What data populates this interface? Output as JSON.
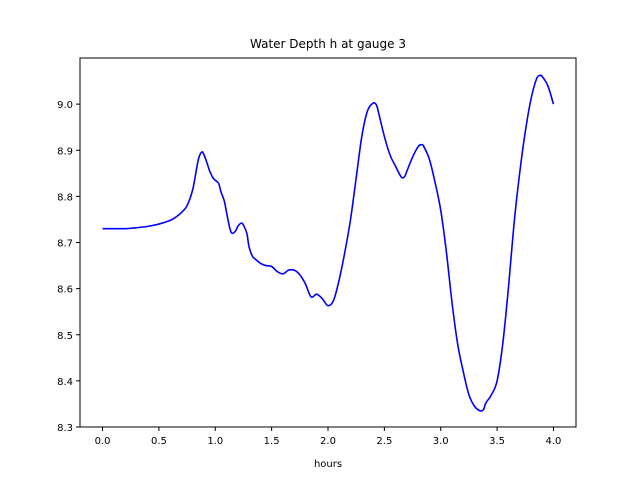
{
  "chart_data": {
    "type": "line",
    "title": "Water Depth h at gauge 3",
    "xlabel": "hours",
    "ylabel": "",
    "xlim": [
      -0.2,
      4.2
    ],
    "ylim": [
      8.3,
      9.1
    ],
    "grid": false,
    "xticks": [
      0.0,
      0.5,
      1.0,
      1.5,
      2.0,
      2.5,
      3.0,
      3.5,
      4.0
    ],
    "xtick_labels": [
      "0.0",
      "0.5",
      "1.0",
      "1.5",
      "2.0",
      "2.5",
      "3.0",
      "3.5",
      "4.0"
    ],
    "yticks": [
      8.3,
      8.4,
      8.5,
      8.6,
      8.7,
      8.8,
      8.9,
      9.0
    ],
    "ytick_labels": [
      "8.3",
      "8.4",
      "8.5",
      "8.6",
      "8.7",
      "8.8",
      "8.9",
      "9.0"
    ],
    "series": [
      {
        "color": "#0000ff",
        "x": [
          0.0,
          0.1,
          0.2,
          0.3,
          0.4,
          0.5,
          0.6,
          0.65,
          0.7,
          0.75,
          0.8,
          0.85,
          0.88,
          0.9,
          0.93,
          0.95,
          0.98,
          1.0,
          1.03,
          1.05,
          1.08,
          1.1,
          1.13,
          1.15,
          1.18,
          1.2,
          1.23,
          1.25,
          1.28,
          1.3,
          1.33,
          1.35,
          1.4,
          1.45,
          1.5,
          1.55,
          1.6,
          1.65,
          1.7,
          1.75,
          1.8,
          1.85,
          1.9,
          1.95,
          2.0,
          2.05,
          2.1,
          2.15,
          2.2,
          2.25,
          2.3,
          2.35,
          2.4,
          2.43,
          2.45,
          2.5,
          2.55,
          2.6,
          2.65,
          2.68,
          2.7,
          2.75,
          2.8,
          2.83,
          2.85,
          2.9,
          2.95,
          3.0,
          3.05,
          3.1,
          3.15,
          3.2,
          3.25,
          3.3,
          3.35,
          3.38,
          3.4,
          3.45,
          3.5,
          3.55,
          3.6,
          3.65,
          3.7,
          3.75,
          3.8,
          3.85,
          3.88,
          3.9,
          3.95,
          4.0
        ],
        "y": [
          8.73,
          8.73,
          8.73,
          8.732,
          8.735,
          8.74,
          8.748,
          8.755,
          8.765,
          8.78,
          8.815,
          8.88,
          8.896,
          8.89,
          8.87,
          8.855,
          8.84,
          8.835,
          8.828,
          8.81,
          8.79,
          8.765,
          8.73,
          8.72,
          8.725,
          8.735,
          8.742,
          8.738,
          8.72,
          8.69,
          8.67,
          8.665,
          8.655,
          8.65,
          8.648,
          8.637,
          8.632,
          8.64,
          8.64,
          8.63,
          8.61,
          8.582,
          8.588,
          8.578,
          8.563,
          8.575,
          8.62,
          8.68,
          8.75,
          8.84,
          8.93,
          8.985,
          9.002,
          8.998,
          8.98,
          8.93,
          8.89,
          8.865,
          8.842,
          8.843,
          8.855,
          8.885,
          8.908,
          8.912,
          8.908,
          8.88,
          8.83,
          8.77,
          8.68,
          8.57,
          8.48,
          8.42,
          8.37,
          8.345,
          8.335,
          8.338,
          8.352,
          8.37,
          8.4,
          8.48,
          8.6,
          8.74,
          8.85,
          8.94,
          9.01,
          9.055,
          9.062,
          9.06,
          9.04,
          9.0
        ]
      }
    ]
  }
}
